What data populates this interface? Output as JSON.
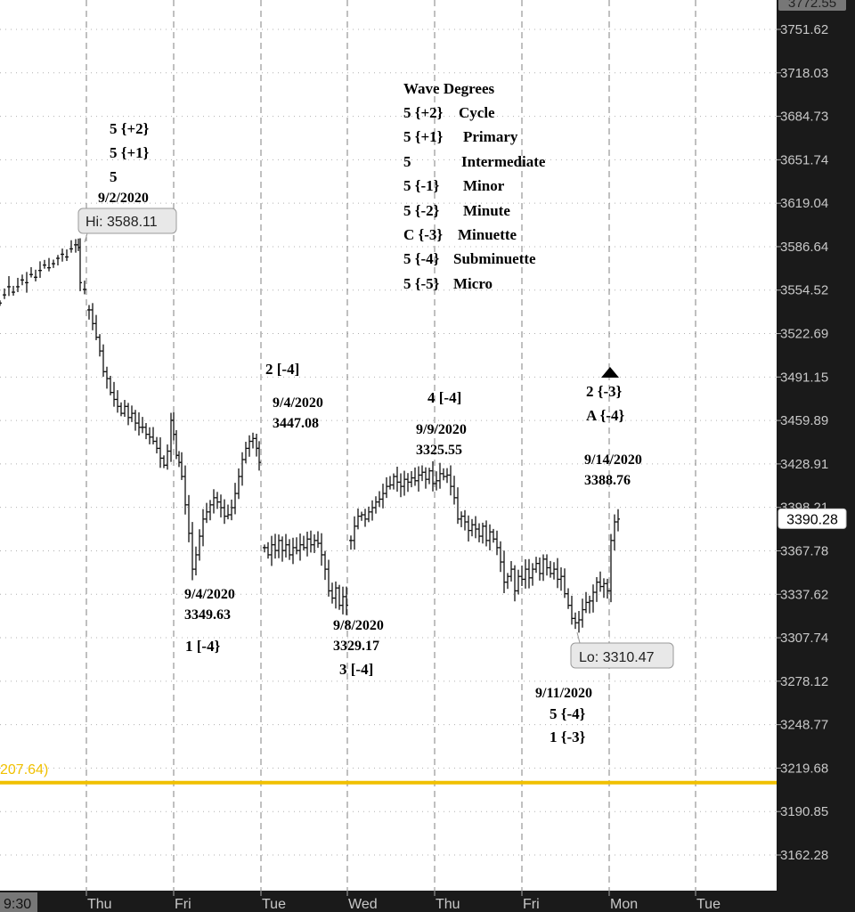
{
  "chart_data": {
    "type": "candlestick",
    "title": "",
    "y_axis": {
      "side": "right",
      "ticks": [
        3751.62,
        3718.03,
        3684.73,
        3651.74,
        3619.04,
        3586.64,
        3554.52,
        3522.69,
        3491.15,
        3459.89,
        3428.91,
        3398.21,
        3367.78,
        3337.62,
        3307.74,
        3278.12,
        3248.77,
        3219.68,
        3190.85,
        3162.28
      ],
      "top_partial_label": "3772.55",
      "current_price_label": "3390.28",
      "current_price": 3390.28
    },
    "x_axis": {
      "first_label": "9:30",
      "labels": [
        "Thu",
        "Fri",
        "Tue",
        "Wed",
        "Thu",
        "Fri",
        "Mon",
        "Tue"
      ]
    },
    "horizontal_line": {
      "label": "207.64)",
      "value": 3210,
      "color": "#f0c000"
    },
    "callouts": [
      {
        "text": "Hi: 3588.11",
        "value": 3588.11
      },
      {
        "text": "Lo: 3310.47",
        "value": 3310.47
      }
    ],
    "legend": {
      "title": "Wave Degrees",
      "rows": [
        {
          "code": "5 {+2}",
          "name": "Cycle"
        },
        {
          "code": "5 {+1}",
          "name": "Primary"
        },
        {
          "code": "5",
          "name": "Intermediate"
        },
        {
          "code": "5 {-1}",
          "name": "Minor"
        },
        {
          "code": "5 {-2}",
          "name": "Minute"
        },
        {
          "code": "C {-3}",
          "name": "Minuette"
        },
        {
          "code": "5 {-4}",
          "name": "Subminuette"
        },
        {
          "code": "5 {-5}",
          "name": "Micro"
        }
      ]
    },
    "annotations": [
      {
        "lines": [
          "5 {+2}",
          "5 {+1}",
          "5",
          "9/2/2020"
        ]
      },
      {
        "lines": [
          "2 [-4]"
        ]
      },
      {
        "lines": [
          "9/4/2020",
          "3447.08"
        ]
      },
      {
        "lines": [
          "4 [-4]"
        ]
      },
      {
        "lines": [
          "9/9/2020",
          "3325.55"
        ]
      },
      {
        "lines": [
          "2 {-3}",
          "A {-4}"
        ]
      },
      {
        "lines": [
          "9/14/2020",
          "3388.76"
        ]
      },
      {
        "lines": [
          "9/4/2020",
          "3349.63"
        ]
      },
      {
        "lines": [
          "1 [-4}"
        ]
      },
      {
        "lines": [
          "9/8/2020",
          "3329.17"
        ]
      },
      {
        "lines": [
          "3 [-4]"
        ]
      },
      {
        "lines": [
          "9/11/2020",
          "5 {-4}",
          "1 {-3}"
        ]
      }
    ],
    "price_path": [
      [
        0,
        3545
      ],
      [
        5,
        3551
      ],
      [
        10,
        3557
      ],
      [
        15,
        3553
      ],
      [
        20,
        3557
      ],
      [
        25,
        3562
      ],
      [
        30,
        3560
      ],
      [
        35,
        3566
      ],
      [
        40,
        3564
      ],
      [
        45,
        3569
      ],
      [
        50,
        3573
      ],
      [
        55,
        3571
      ],
      [
        60,
        3574
      ],
      [
        65,
        3578
      ],
      [
        70,
        3581
      ],
      [
        75,
        3579
      ],
      [
        80,
        3585
      ],
      [
        85,
        3588
      ],
      [
        88,
        3586
      ],
      [
        90,
        3560
      ],
      [
        95,
        3555
      ],
      [
        100,
        3540
      ],
      [
        104,
        3530
      ],
      [
        108,
        3520
      ],
      [
        112,
        3510
      ],
      [
        116,
        3495
      ],
      [
        120,
        3490
      ],
      [
        124,
        3480
      ],
      [
        128,
        3475
      ],
      [
        132,
        3470
      ],
      [
        136,
        3465
      ],
      [
        140,
        3470
      ],
      [
        144,
        3462
      ],
      [
        148,
        3465
      ],
      [
        152,
        3458
      ],
      [
        156,
        3455
      ],
      [
        160,
        3455
      ],
      [
        164,
        3450
      ],
      [
        168,
        3448
      ],
      [
        172,
        3445
      ],
      [
        176,
        3440
      ],
      [
        180,
        3433
      ],
      [
        184,
        3428
      ],
      [
        188,
        3438
      ],
      [
        192,
        3460
      ],
      [
        195,
        3450
      ],
      [
        198,
        3435
      ],
      [
        201,
        3430
      ],
      [
        204,
        3420
      ],
      [
        208,
        3400
      ],
      [
        212,
        3380
      ],
      [
        216,
        3355
      ],
      [
        220,
        3365
      ],
      [
        224,
        3378
      ],
      [
        228,
        3390
      ],
      [
        232,
        3395
      ],
      [
        236,
        3400
      ],
      [
        240,
        3405
      ],
      [
        244,
        3402
      ],
      [
        248,
        3398
      ],
      [
        252,
        3392
      ],
      [
        256,
        3393
      ],
      [
        260,
        3398
      ],
      [
        264,
        3408
      ],
      [
        268,
        3420
      ],
      [
        272,
        3432
      ],
      [
        276,
        3440
      ],
      [
        280,
        3445
      ],
      [
        284,
        3447
      ],
      [
        288,
        3440
      ],
      [
        291,
        3430
      ],
      [
        297,
        3370
      ],
      [
        301,
        3365
      ],
      [
        305,
        3372
      ],
      [
        309,
        3368
      ],
      [
        313,
        3375
      ],
      [
        317,
        3368
      ],
      [
        321,
        3372
      ],
      [
        325,
        3365
      ],
      [
        329,
        3370
      ],
      [
        333,
        3368
      ],
      [
        337,
        3372
      ],
      [
        341,
        3370
      ],
      [
        345,
        3376
      ],
      [
        349,
        3372
      ],
      [
        353,
        3375
      ],
      [
        357,
        3373
      ],
      [
        361,
        3365
      ],
      [
        365,
        3355
      ],
      [
        369,
        3340
      ],
      [
        373,
        3335
      ],
      [
        377,
        3342
      ],
      [
        381,
        3330
      ],
      [
        385,
        3336
      ],
      [
        389,
        3330
      ],
      [
        394,
        3375
      ],
      [
        398,
        3385
      ],
      [
        402,
        3392
      ],
      [
        406,
        3393
      ],
      [
        410,
        3390
      ],
      [
        414,
        3395
      ],
      [
        418,
        3398
      ],
      [
        422,
        3402
      ],
      [
        426,
        3404
      ],
      [
        430,
        3408
      ],
      [
        434,
        3413
      ],
      [
        438,
        3414
      ],
      [
        442,
        3420
      ],
      [
        446,
        3416
      ],
      [
        450,
        3413
      ],
      [
        454,
        3418
      ],
      [
        458,
        3416
      ],
      [
        462,
        3419
      ],
      [
        466,
        3417
      ],
      [
        470,
        3421
      ],
      [
        474,
        3423
      ],
      [
        478,
        3418
      ],
      [
        482,
        3424
      ],
      [
        486,
        3415
      ],
      [
        490,
        3417
      ],
      [
        494,
        3422
      ],
      [
        498,
        3420
      ],
      [
        502,
        3421
      ],
      [
        506,
        3413
      ],
      [
        510,
        3405
      ],
      [
        514,
        3390
      ],
      [
        518,
        3392
      ],
      [
        522,
        3388
      ],
      [
        526,
        3382
      ],
      [
        530,
        3386
      ],
      [
        534,
        3383
      ],
      [
        538,
        3378
      ],
      [
        542,
        3385
      ],
      [
        546,
        3375
      ],
      [
        550,
        3381
      ],
      [
        554,
        3376
      ],
      [
        558,
        3370
      ],
      [
        562,
        3360
      ],
      [
        566,
        3346
      ],
      [
        570,
        3350
      ],
      [
        574,
        3355
      ],
      [
        578,
        3340
      ],
      [
        582,
        3350
      ],
      [
        586,
        3348
      ],
      [
        590,
        3355
      ],
      [
        594,
        3349
      ],
      [
        598,
        3355
      ],
      [
        602,
        3359
      ],
      [
        606,
        3352
      ],
      [
        610,
        3362
      ],
      [
        614,
        3356
      ],
      [
        618,
        3352
      ],
      [
        622,
        3355
      ],
      [
        626,
        3348
      ],
      [
        630,
        3350
      ],
      [
        634,
        3338
      ],
      [
        638,
        3330
      ],
      [
        642,
        3321
      ],
      [
        646,
        3318
      ],
      [
        650,
        3320
      ],
      [
        654,
        3327
      ],
      [
        658,
        3332
      ],
      [
        662,
        3333
      ],
      [
        666,
        3339
      ],
      [
        670,
        3346
      ],
      [
        674,
        3343
      ],
      [
        678,
        3345
      ],
      [
        682,
        3340
      ],
      [
        686,
        3375
      ],
      [
        690,
        3388
      ],
      [
        694,
        3390
      ]
    ]
  }
}
